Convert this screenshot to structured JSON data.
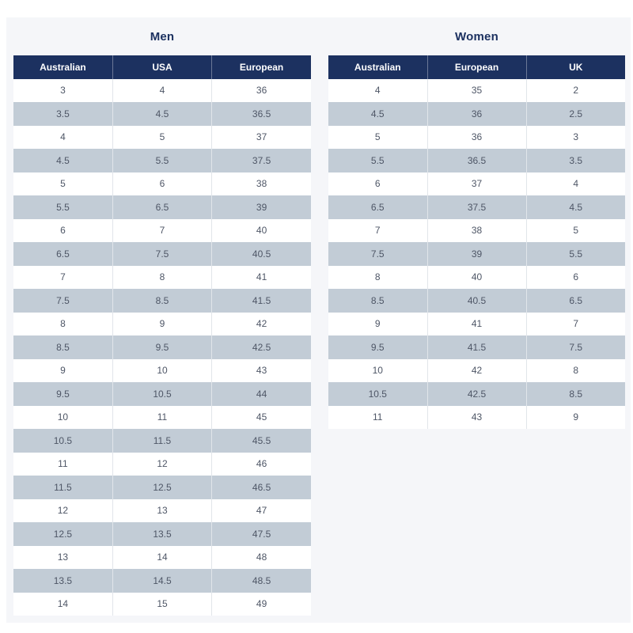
{
  "colors": {
    "page_background": "#ffffff",
    "panel_background": "#f5f6f9",
    "header_background": "#1c3160",
    "header_text": "#ffffff",
    "alt_row_background": "#c2ccd6",
    "row_background": "#ffffff",
    "cell_text": "#4e5666",
    "title_text": "#1c3160"
  },
  "tables": [
    {
      "id": "men",
      "title": "Men",
      "headers": [
        "Australian",
        "USA",
        "European"
      ],
      "rows": [
        [
          "3",
          "4",
          "36"
        ],
        [
          "3.5",
          "4.5",
          "36.5"
        ],
        [
          "4",
          "5",
          "37"
        ],
        [
          "4.5",
          "5.5",
          "37.5"
        ],
        [
          "5",
          "6",
          "38"
        ],
        [
          "5.5",
          "6.5",
          "39"
        ],
        [
          "6",
          "7",
          "40"
        ],
        [
          "6.5",
          "7.5",
          "40.5"
        ],
        [
          "7",
          "8",
          "41"
        ],
        [
          "7.5",
          "8.5",
          "41.5"
        ],
        [
          "8",
          "9",
          "42"
        ],
        [
          "8.5",
          "9.5",
          "42.5"
        ],
        [
          "9",
          "10",
          "43"
        ],
        [
          "9.5",
          "10.5",
          "44"
        ],
        [
          "10",
          "11",
          "45"
        ],
        [
          "10.5",
          "11.5",
          "45.5"
        ],
        [
          "11",
          "12",
          "46"
        ],
        [
          "11.5",
          "12.5",
          "46.5"
        ],
        [
          "12",
          "13",
          "47"
        ],
        [
          "12.5",
          "13.5",
          "47.5"
        ],
        [
          "13",
          "14",
          "48"
        ],
        [
          "13.5",
          "14.5",
          "48.5"
        ],
        [
          "14",
          "15",
          "49"
        ]
      ]
    },
    {
      "id": "women",
      "title": "Women",
      "headers": [
        "Australian",
        "European",
        "UK"
      ],
      "rows": [
        [
          "4",
          "35",
          "2"
        ],
        [
          "4.5",
          "36",
          "2.5"
        ],
        [
          "5",
          "36",
          "3"
        ],
        [
          "5.5",
          "36.5",
          "3.5"
        ],
        [
          "6",
          "37",
          "4"
        ],
        [
          "6.5",
          "37.5",
          "4.5"
        ],
        [
          "7",
          "38",
          "5"
        ],
        [
          "7.5",
          "39",
          "5.5"
        ],
        [
          "8",
          "40",
          "6"
        ],
        [
          "8.5",
          "40.5",
          "6.5"
        ],
        [
          "9",
          "41",
          "7"
        ],
        [
          "9.5",
          "41.5",
          "7.5"
        ],
        [
          "10",
          "42",
          "8"
        ],
        [
          "10.5",
          "42.5",
          "8.5"
        ],
        [
          "11",
          "43",
          "9"
        ]
      ]
    }
  ]
}
